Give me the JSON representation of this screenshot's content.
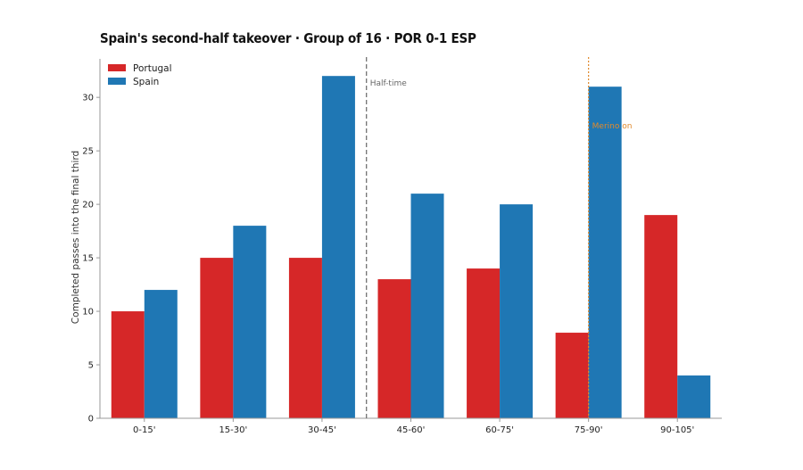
{
  "chart_data": {
    "type": "bar",
    "title": "Spain's second-half takeover · Group of 16 · POR 0-1 ESP",
    "xlabel": "",
    "ylabel": "Completed passes into the final third",
    "categories": [
      "0-15'",
      "15-30'",
      "30-45'",
      "45-60'",
      "60-75'",
      "75-90'",
      "90-105'"
    ],
    "series": [
      {
        "name": "Portugal",
        "color": "#d62728",
        "values": [
          10,
          15,
          15,
          13,
          14,
          8,
          19
        ]
      },
      {
        "name": "Spain",
        "color": "#1f77b4",
        "values": [
          12,
          18,
          32,
          21,
          20,
          31,
          4
        ]
      }
    ],
    "ylim": [
      0,
      33.6
    ],
    "yticks": [
      0,
      5,
      10,
      15,
      20,
      25,
      30
    ],
    "grid": false,
    "legend": "top-left",
    "annotations": [
      {
        "label": "Half-time",
        "between": [
          "30-45'",
          "45-60'"
        ],
        "style": "dashed",
        "color": "#666666"
      },
      {
        "label": "Merino on",
        "category": "75-90'",
        "style": "dotted",
        "color": "#e08a2c"
      }
    ]
  }
}
